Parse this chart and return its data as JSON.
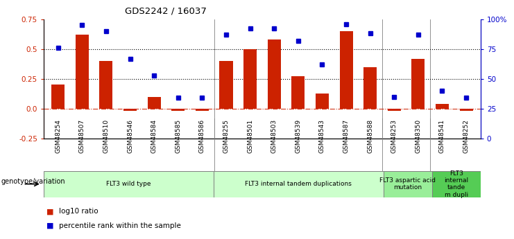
{
  "title": "GDS2242 / 16037",
  "samples": [
    "GSM48254",
    "GSM48507",
    "GSM48510",
    "GSM48546",
    "GSM48584",
    "GSM48585",
    "GSM48586",
    "GSM48255",
    "GSM48501",
    "GSM48503",
    "GSM48539",
    "GSM48543",
    "GSM48587",
    "GSM48588",
    "GSM48253",
    "GSM48350",
    "GSM48541",
    "GSM48252"
  ],
  "log10_ratio": [
    0.2,
    0.62,
    0.4,
    -0.02,
    0.1,
    -0.02,
    -0.02,
    0.4,
    0.5,
    0.58,
    0.27,
    0.13,
    0.65,
    0.35,
    -0.02,
    0.42,
    0.04,
    -0.02
  ],
  "percentile_rank": [
    76,
    95,
    90,
    67,
    53,
    34,
    34,
    87,
    92,
    92,
    82,
    62,
    96,
    88,
    35,
    87,
    40,
    34
  ],
  "ylim_left": [
    -0.25,
    0.75
  ],
  "ylim_right": [
    0,
    100
  ],
  "bar_color": "#cc2200",
  "dot_color": "#0000cc",
  "hline_red": 0.0,
  "hline_dotted1": 0.25,
  "hline_dotted2": 0.5,
  "groups": [
    {
      "label": "FLT3 wild type",
      "start": 0,
      "end": 7,
      "color": "#ccffcc"
    },
    {
      "label": "FLT3 internal tandem duplications",
      "start": 7,
      "end": 14,
      "color": "#ccffcc"
    },
    {
      "label": "FLT3 aspartic acid\nmutation",
      "start": 14,
      "end": 16,
      "color": "#99ee99"
    },
    {
      "label": "FLT3\ninternal\ntande\nm dupli",
      "start": 16,
      "end": 18,
      "color": "#55cc55"
    }
  ],
  "legend_log10": "log10 ratio",
  "legend_pct": "percentile rank within the sample",
  "genotype_label": "genotype/variation",
  "left_yticks": [
    -0.25,
    0.0,
    0.25,
    0.5,
    0.75
  ],
  "right_yticks": [
    0,
    25,
    50,
    75,
    100
  ],
  "right_yticklabels": [
    "0",
    "25",
    "50",
    "75",
    "100%"
  ]
}
